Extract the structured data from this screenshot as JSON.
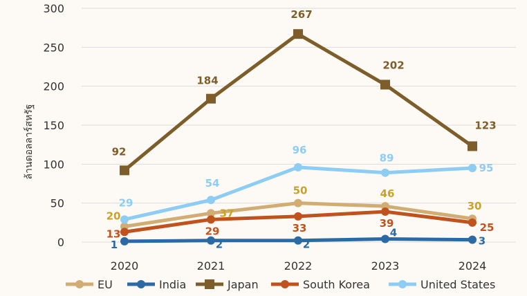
{
  "chart_data": {
    "type": "line",
    "title": "",
    "xlabel": "",
    "ylabel": "ล้านดอลลาร์สหรัฐ",
    "ylim": [
      0,
      300
    ],
    "yticks": [
      0,
      50,
      100,
      150,
      200,
      250,
      300
    ],
    "grid": true,
    "legend_position": "bottom",
    "categories": [
      "2020",
      "2021",
      "2022",
      "2023",
      "2024"
    ],
    "series": [
      {
        "name": "EU",
        "values": [
          20,
          37,
          50,
          46,
          30
        ],
        "color": "#d1ad74",
        "marker": "circle",
        "label_color": "#c9a227"
      },
      {
        "name": "India",
        "values": [
          1,
          2,
          2,
          4,
          3
        ],
        "color": "#2b6aa3",
        "marker": "circle",
        "label_color": "#2b6aa3"
      },
      {
        "name": "Japan",
        "values": [
          92,
          184,
          267,
          202,
          123
        ],
        "color": "#7d5e2a",
        "marker": "square",
        "label_color": "#7d5e2a"
      },
      {
        "name": "South Korea",
        "values": [
          13,
          29,
          33,
          39,
          25
        ],
        "color": "#c0521e",
        "marker": "circle",
        "label_color": "#c0521e"
      },
      {
        "name": "United States",
        "values": [
          29,
          54,
          96,
          89,
          95
        ],
        "color": "#8ecdf3",
        "marker": "circle",
        "label_color": "#8ecdf3"
      }
    ]
  }
}
